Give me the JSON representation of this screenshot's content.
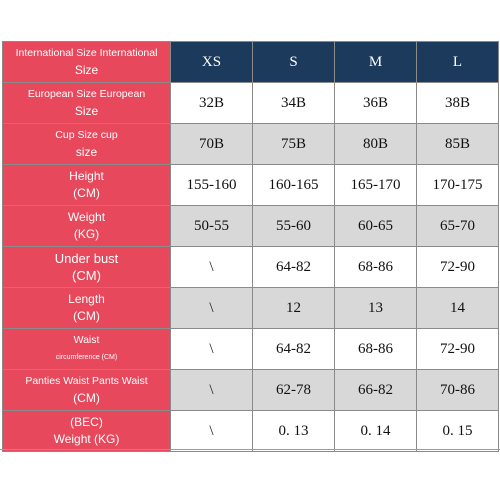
{
  "sizes": [
    "XS",
    "S",
    "M",
    "L"
  ],
  "rows": [
    {
      "label1": "European Size European",
      "label2": "Size",
      "values": [
        "32B",
        "34B",
        "36B",
        "38B"
      ]
    },
    {
      "label1": "Cup Size cup",
      "label2": "size",
      "values": [
        "70B",
        "75B",
        "80B",
        "85B"
      ]
    },
    {
      "label1": "Height",
      "label2": "(CM)",
      "values": [
        "155-160",
        "160-165",
        "165-170",
        "170-175"
      ]
    },
    {
      "label1": "Weight",
      "label2": "(KG)",
      "values": [
        "50-55",
        "55-60",
        "60-65",
        "65-70"
      ]
    },
    {
      "label1": "Under bust",
      "label2": "(CM)",
      "values": [
        "\\",
        "64-82",
        "68-86",
        "72-90"
      ]
    },
    {
      "label1": "Length",
      "label2": "(CM)",
      "values": [
        "\\",
        "12",
        "13",
        "14"
      ]
    },
    {
      "label1": "Waist",
      "label2": "circumference (CM)",
      "values": [
        "\\",
        "64-82",
        "68-86",
        "72-90"
      ]
    },
    {
      "label1": "Panties Waist Pants Waist",
      "label2": "(CM)",
      "values": [
        "\\",
        "62-78",
        "66-82",
        "70-86"
      ]
    },
    {
      "label1": "(BEC)",
      "label2": "Weight (KG)",
      "values": [
        "\\",
        "0. 13",
        "0. 14",
        "0. 15"
      ]
    }
  ],
  "header": {
    "label1": "International Size International",
    "label2": "Size"
  },
  "colors": {
    "label_bg": "#e8485c",
    "header_bg": "#1c3a5c",
    "gray_row": "#d8d8d8"
  }
}
